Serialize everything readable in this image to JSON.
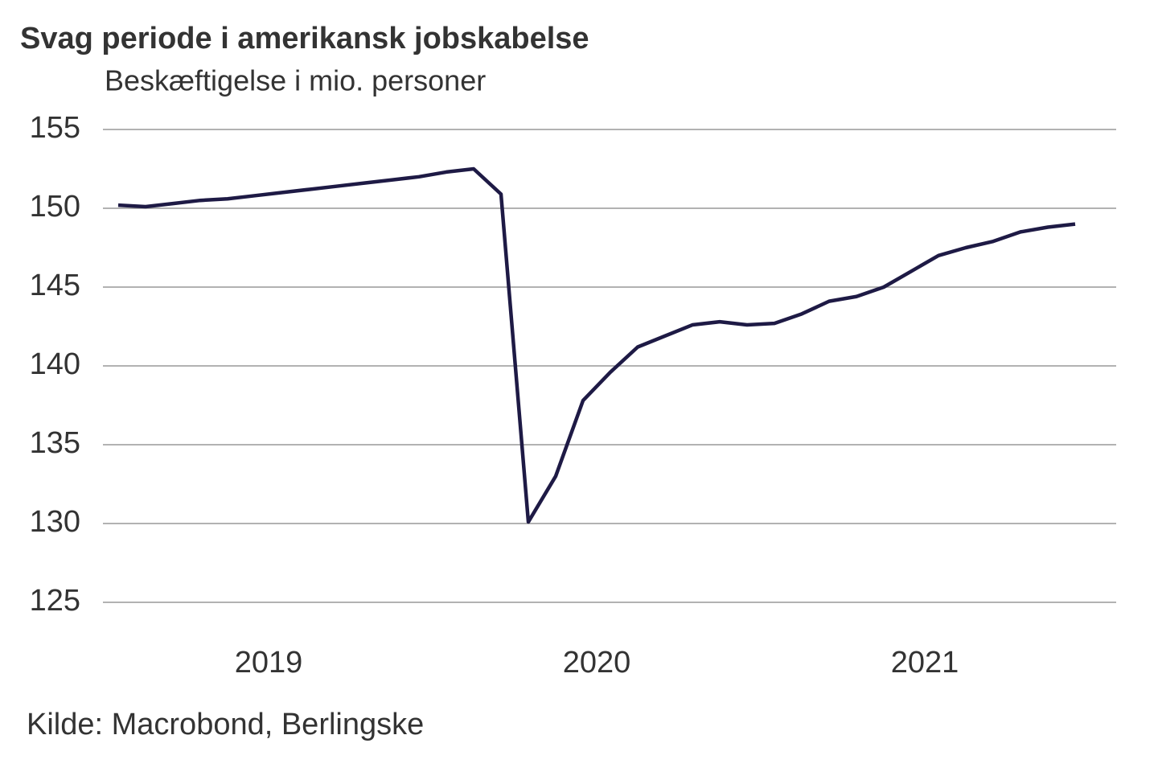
{
  "chart_data": {
    "type": "line",
    "title": "Svag periode i amerikansk jobskabelse",
    "subtitle": "Beskæftigelse i mio. personer",
    "source": "Kilde: Macrobond, Berlingske",
    "categories": [
      null,
      null,
      null,
      null,
      null,
      "2019",
      null,
      null,
      null,
      null,
      null,
      null,
      null,
      null,
      null,
      null,
      null,
      "2020",
      null,
      null,
      null,
      null,
      null,
      null,
      null,
      null,
      null,
      null,
      null,
      "2021",
      null,
      null,
      null,
      null,
      null,
      null
    ],
    "series": [
      {
        "name": "Beskæftigelse",
        "color": "#1e1a45",
        "values": [
          150.2,
          150.1,
          150.3,
          150.5,
          150.6,
          150.8,
          151.0,
          151.2,
          151.4,
          151.6,
          151.8,
          152.0,
          152.3,
          152.5,
          150.9,
          130.1,
          133.0,
          137.8,
          139.6,
          141.2,
          141.9,
          142.6,
          142.8,
          142.6,
          142.7,
          143.3,
          144.1,
          144.4,
          145.0,
          146.0,
          147.0,
          147.5,
          147.9,
          148.5,
          148.8,
          149.0
        ]
      }
    ],
    "ylim": [
      125,
      155
    ],
    "yticks": [
      125,
      130,
      135,
      140,
      145,
      150,
      155
    ],
    "grid": true
  }
}
